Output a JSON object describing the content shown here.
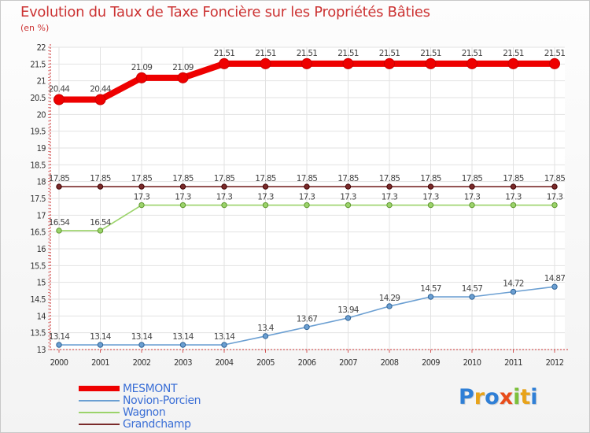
{
  "title": "Evolution du Taux de Taxe Foncière sur les Propriétés Bâties",
  "subtitle": "(en %)",
  "logo": {
    "letters": [
      "P",
      "r",
      "o",
      "x",
      "i",
      "t",
      "i"
    ],
    "colors": [
      "#2f7fd6",
      "#e8a31a",
      "#2f7fd6",
      "#e84c1a",
      "#7cc03a",
      "#e8a31a",
      "#2f7fd6"
    ]
  },
  "chart_data": {
    "type": "line",
    "title": "Evolution du Taux de Taxe Foncière sur les Propriétés Bâties",
    "ylabel": "(en %)",
    "xlabel": "",
    "ylim": [
      13,
      22
    ],
    "yticks": [
      "13",
      "13.5",
      "14",
      "14.5",
      "15",
      "15.5",
      "16",
      "16.5",
      "17",
      "17.5",
      "18",
      "18.5",
      "19",
      "19.5",
      "20",
      "20.5",
      "21",
      "21.5",
      "22"
    ],
    "categories": [
      "2000",
      "2001",
      "2002",
      "2003",
      "2004",
      "2005",
      "2006",
      "2007",
      "2008",
      "2009",
      "2010",
      "2011",
      "2012"
    ],
    "series": [
      {
        "name": "MESMONT",
        "color": "#ee0000",
        "values": [
          20.44,
          20.44,
          21.09,
          21.09,
          21.51,
          21.51,
          21.51,
          21.51,
          21.51,
          21.51,
          21.51,
          21.51,
          21.51
        ],
        "labels": [
          "20.44",
          "20.44",
          "21.09",
          "21.09",
          "21.51",
          "21.51",
          "21.51",
          "21.51",
          "21.51",
          "21.51",
          "21.51",
          "21.51",
          "21.51"
        ]
      },
      {
        "name": "Novion-Porcien",
        "color": "#6b9fd2",
        "values": [
          13.14,
          13.14,
          13.14,
          13.14,
          13.14,
          13.4,
          13.67,
          13.94,
          14.29,
          14.57,
          14.57,
          14.72,
          14.87
        ],
        "labels": [
          "13.14",
          "13.14",
          "13.14",
          "13.14",
          "13.14",
          "13.4",
          "13.67",
          "13.94",
          "14.29",
          "14.57",
          "14.57",
          "14.72",
          "14.87"
        ]
      },
      {
        "name": "Wagnon",
        "color": "#9bd36a",
        "values": [
          16.54,
          16.54,
          17.3,
          17.3,
          17.3,
          17.3,
          17.3,
          17.3,
          17.3,
          17.3,
          17.3,
          17.3,
          17.3
        ],
        "labels": [
          "16.54",
          "16.54",
          "17.3",
          "17.3",
          "17.3",
          "17.3",
          "17.3",
          "17.3",
          "17.3",
          "17.3",
          "17.3",
          "17.3",
          "17.3"
        ]
      },
      {
        "name": "Grandchamp",
        "color": "#7a2a2a",
        "values": [
          17.85,
          17.85,
          17.85,
          17.85,
          17.85,
          17.85,
          17.85,
          17.85,
          17.85,
          17.85,
          17.85,
          17.85,
          17.85
        ],
        "labels": [
          "17.85",
          "17.85",
          "17.85",
          "17.85",
          "17.85",
          "17.85",
          "17.85",
          "17.85",
          "17.85",
          "17.85",
          "17.85",
          "17.85",
          "17.85"
        ]
      }
    ]
  }
}
